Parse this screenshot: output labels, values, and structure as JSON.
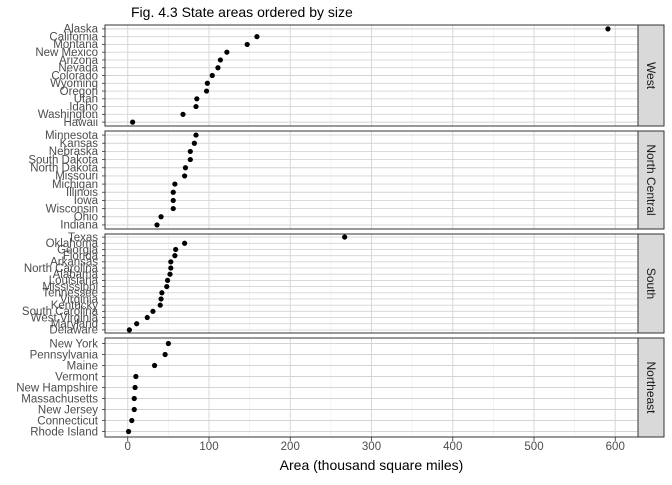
{
  "chart_data": {
    "type": "scatter",
    "title": "Fig. 4.3 State areas ordered by size",
    "xlabel": "Area (thousand square miles)",
    "ylabel": "",
    "xlim": [
      -28,
      628
    ],
    "x_ticks": [
      0,
      100,
      200,
      300,
      400,
      500,
      600
    ],
    "grid": true,
    "legend": "none",
    "point_color": "#000000",
    "strip_fill": "#d9d9d9",
    "facets": [
      {
        "name": "West",
        "states": [
          "Alaska",
          "California",
          "Montana",
          "New Mexico",
          "Arizona",
          "Nevada",
          "Colorado",
          "Wyoming",
          "Oregon",
          "Utah",
          "Idaho",
          "Washington",
          "Hawaii"
        ],
        "values": [
          591,
          159,
          147,
          122,
          114,
          111,
          104,
          98,
          97,
          85,
          84,
          68,
          6
        ]
      },
      {
        "name": "North Central",
        "states": [
          "Minnesota",
          "Kansas",
          "Nebraska",
          "South Dakota",
          "North Dakota",
          "Missouri",
          "Michigan",
          "Illinois",
          "Iowa",
          "Wisconsin",
          "Ohio",
          "Indiana"
        ],
        "values": [
          84,
          82,
          77,
          77,
          71,
          70,
          58,
          56,
          56,
          56,
          41,
          36
        ]
      },
      {
        "name": "South",
        "states": [
          "Texas",
          "Oklahoma",
          "Georgia",
          "Florida",
          "Arkansas",
          "North Carolina",
          "Alabama",
          "Louisiana",
          "Mississippi",
          "Tennessee",
          "Virginia",
          "Kentucky",
          "South Carolina",
          "West Virginia",
          "Maryland",
          "Delaware"
        ],
        "values": [
          267,
          70,
          59,
          58,
          53,
          53,
          52,
          49,
          48,
          42,
          41,
          40,
          31,
          24,
          11,
          2
        ]
      },
      {
        "name": "Northeast",
        "states": [
          "New York",
          "Pennsylvania",
          "Maine",
          "Vermont",
          "New Hampshire",
          "Massachusetts",
          "New Jersey",
          "Connecticut",
          "Rhode Island"
        ],
        "values": [
          50,
          46,
          33,
          10,
          9,
          8,
          8,
          5,
          1
        ]
      }
    ]
  }
}
